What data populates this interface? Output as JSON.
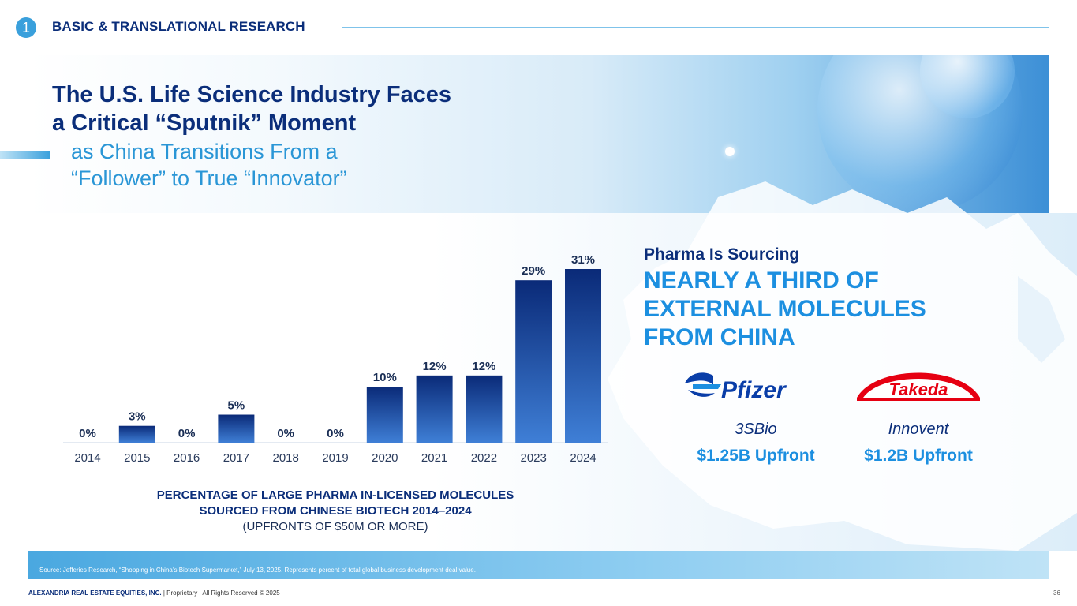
{
  "header": {
    "section_number": "1",
    "section_title": "BASIC & TRANSLATIONAL RESEARCH"
  },
  "hero": {
    "title_line1": "The U.S. Life Science Industry Faces",
    "title_line2": "a Critical “Sputnik” Moment",
    "subtitle_line1": "as China Transitions From a",
    "subtitle_line2": "“Follower” to True “Innovator”"
  },
  "chart_data": {
    "type": "bar",
    "categories": [
      "2014",
      "2015",
      "2016",
      "2017",
      "2018",
      "2019",
      "2020",
      "2021",
      "2022",
      "2023",
      "2024"
    ],
    "values": [
      0,
      3,
      0,
      5,
      0,
      0,
      10,
      12,
      12,
      29,
      31
    ],
    "value_labels": [
      "0%",
      "3%",
      "0%",
      "5%",
      "0%",
      "0%",
      "10%",
      "12%",
      "12%",
      "29%",
      "31%"
    ],
    "title": "PERCENTAGE OF LARGE PHARMA IN-LICENSED MOLECULES SOURCED FROM CHINESE BIOTECH 2014–2024",
    "ylim": [
      0,
      31
    ],
    "bar_color_top": "#0a2a78",
    "bar_color_bottom": "#3f7fd6"
  },
  "caption": {
    "line1": "PERCENTAGE OF LARGE PHARMA IN-LICENSED MOLECULES",
    "line2": "SOURCED FROM CHINESE BIOTECH 2014–2024",
    "line3": "(UPFRONTS OF $50M OR MORE)"
  },
  "right_panel": {
    "kicker": "Pharma Is Sourcing",
    "headline_line1": "NEARLY A THIRD OF",
    "headline_line2": "EXTERNAL MOLECULES",
    "headline_line3": "FROM CHINA",
    "deals": [
      {
        "logo_text": "Pfizer",
        "partner": "3SBio",
        "amount": "$1.25B Upfront"
      },
      {
        "logo_text": "Takeda",
        "partner": "Innovent",
        "amount": "$1.2B Upfront"
      }
    ]
  },
  "footer": {
    "source": "Source: Jefferies Research, “Shopping in China’s Biotech Supermarket,” July 13, 2025. Represents percent of total global business development deal value.",
    "company": "ALEXANDRIA REAL ESTATE EQUITIES, INC.",
    "rights": " | Proprietary | All Rights Reserved © 2025",
    "page_number": "36"
  },
  "colors": {
    "navy": "#0b2e7a",
    "accent_blue": "#1c8fe0",
    "light_blue": "#3aa0dc",
    "takeda_red": "#e60012",
    "pfizer_blue": "#0a3ea8"
  }
}
